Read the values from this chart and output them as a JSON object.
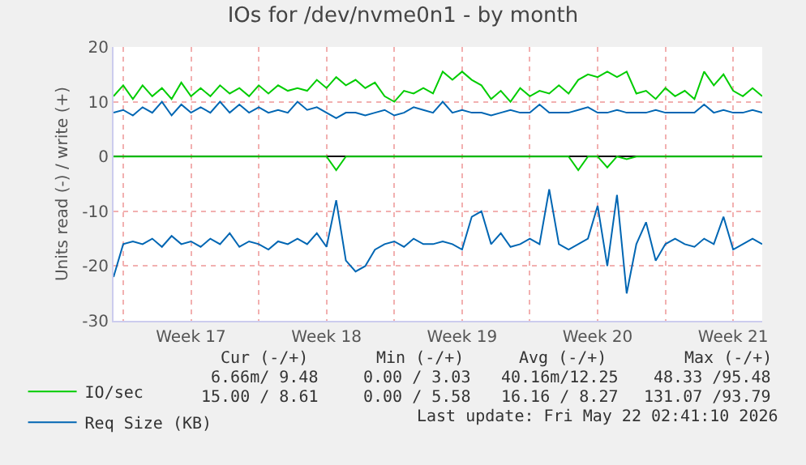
{
  "chart_data": {
    "type": "line",
    "title": "IOs for /dev/nvme0n1 - by month",
    "ylabel": "Units read (-) / write (+)",
    "x": [
      "2026-04-19T12:00",
      "2026-04-20T00:00",
      "2026-04-20T12:00",
      "2026-04-21T00:00",
      "2026-04-21T12:00",
      "2026-04-22T00:00",
      "2026-04-22T12:00",
      "2026-04-23T00:00",
      "2026-04-23T12:00",
      "2026-04-24T00:00",
      "2026-04-24T12:00",
      "2026-04-25T00:00",
      "2026-04-25T12:00",
      "2026-04-26T00:00",
      "2026-04-26T12:00",
      "2026-04-27T00:00",
      "2026-04-27T12:00",
      "2026-04-28T00:00",
      "2026-04-28T12:00",
      "2026-04-29T00:00",
      "2026-04-29T12:00",
      "2026-04-30T00:00",
      "2026-04-30T12:00",
      "2026-05-01T00:00",
      "2026-05-01T12:00",
      "2026-05-02T00:00",
      "2026-05-02T12:00",
      "2026-05-03T00:00",
      "2026-05-03T12:00",
      "2026-05-04T00:00",
      "2026-05-04T12:00",
      "2026-05-05T00:00",
      "2026-05-05T12:00",
      "2026-05-06T00:00",
      "2026-05-06T12:00",
      "2026-05-07T00:00",
      "2026-05-07T12:00",
      "2026-05-08T00:00",
      "2026-05-08T12:00",
      "2026-05-09T00:00",
      "2026-05-09T12:00",
      "2026-05-10T00:00",
      "2026-05-10T12:00",
      "2026-05-11T00:00",
      "2026-05-11T12:00",
      "2026-05-12T00:00",
      "2026-05-12T12:00",
      "2026-05-13T00:00",
      "2026-05-13T12:00",
      "2026-05-14T00:00",
      "2026-05-14T12:00",
      "2026-05-15T00:00",
      "2026-05-15T12:00",
      "2026-05-16T00:00",
      "2026-05-16T12:00",
      "2026-05-17T00:00",
      "2026-05-17T12:00",
      "2026-05-18T00:00",
      "2026-05-18T12:00",
      "2026-05-19T00:00",
      "2026-05-19T12:00",
      "2026-05-20T00:00",
      "2026-05-20T12:00",
      "2026-05-21T00:00",
      "2026-05-21T12:00",
      "2026-05-22T00:00",
      "2026-05-22T12:00",
      "2026-05-23T00:00"
    ],
    "series": [
      {
        "name": "IO/sec",
        "color": "#00cc00",
        "values": [
          11,
          13,
          10.5,
          13,
          11,
          12.5,
          10.5,
          13.5,
          11,
          12.5,
          11,
          13,
          11.5,
          12.5,
          11,
          13,
          11.5,
          13,
          12,
          12.5,
          12,
          14,
          12.5,
          14.5,
          13,
          14,
          12.5,
          13.5,
          11,
          10,
          12,
          11.5,
          12.5,
          11.5,
          15.5,
          14,
          15.5,
          14,
          13,
          10.5,
          12,
          10,
          12.5,
          11,
          12,
          11.5,
          13,
          11.5,
          14,
          15,
          14.5,
          15.5,
          14.5,
          15.5,
          11.5,
          12,
          10.5,
          12.5,
          11,
          12,
          10.5,
          15.5,
          13,
          15,
          12,
          11,
          12.5,
          11
        ]
      },
      {
        "color": "#00cc00",
        "values": [
          0,
          0,
          0,
          0,
          0,
          0,
          0,
          0,
          0,
          0,
          0,
          0,
          0,
          0,
          0,
          0,
          0,
          0,
          0,
          0,
          0,
          0,
          0,
          -2.5,
          0,
          0,
          0,
          0,
          0,
          0,
          0,
          0,
          0,
          0,
          0,
          0,
          0,
          0,
          0,
          0,
          0,
          0,
          0,
          0,
          0,
          0,
          0,
          0,
          -2.5,
          0,
          0,
          -2,
          0,
          -0.5,
          0,
          0,
          0,
          0,
          0,
          0,
          0,
          0,
          0,
          0,
          0,
          0,
          0,
          0
        ]
      },
      {
        "name": "Req Size (KB)",
        "color": "#0066b3",
        "values": [
          8,
          8.5,
          7.5,
          9,
          8,
          10,
          7.5,
          9.5,
          8,
          9,
          8,
          10,
          8,
          9.5,
          8,
          9,
          8,
          8.5,
          8,
          10,
          8.5,
          9,
          8,
          7,
          8,
          8,
          7.5,
          8,
          8.5,
          7.5,
          8,
          9,
          8.5,
          8,
          10,
          8,
          8.5,
          8,
          8,
          7.5,
          8,
          8.5,
          8,
          8,
          9.5,
          8,
          8,
          8,
          8.5,
          9,
          8,
          8,
          8.5,
          8,
          8,
          8,
          8.5,
          8,
          8,
          8,
          8,
          9.5,
          8,
          8.5,
          8,
          8,
          8.5,
          8
        ]
      },
      {
        "color": "#0066b3",
        "values": [
          -22,
          -16,
          -15.5,
          -16,
          -15,
          -16.5,
          -14.5,
          -16,
          -15.5,
          -16.5,
          -15,
          -16,
          -14,
          -16.5,
          -15.5,
          -16,
          -17,
          -15.5,
          -16,
          -15,
          -16,
          -14,
          -16.5,
          -8,
          -19,
          -21,
          -20,
          -17,
          -16,
          -15.5,
          -16.5,
          -15,
          -16,
          -16,
          -15.5,
          -16,
          -17,
          -11,
          -10,
          -16,
          -14,
          -16.5,
          -16,
          -15,
          -16,
          -6,
          -16,
          -17,
          -16,
          -15,
          -9,
          -20,
          -7,
          -25,
          -16,
          -12,
          -19,
          -16,
          -15,
          -16,
          -16.5,
          -15,
          -16,
          -11,
          -17,
          -16,
          -15,
          -16
        ]
      }
    ],
    "xlim": [
      "2026-04-19T12:00",
      "2026-05-23T00:00"
    ],
    "xticks": [
      {
        "value": "2026-04-20",
        "label": null
      },
      {
        "value": "2026-04-23T12:00",
        "label": "Week 17"
      },
      {
        "value": "2026-04-27",
        "label": null
      },
      {
        "value": "2026-04-30T12:00",
        "label": "Week 18"
      },
      {
        "value": "2026-05-04",
        "label": null
      },
      {
        "value": "2026-05-07T12:00",
        "label": "Week 19"
      },
      {
        "value": "2026-05-11",
        "label": null
      },
      {
        "value": "2026-05-14T12:00",
        "label": "Week 20"
      },
      {
        "value": "2026-05-18",
        "label": null
      },
      {
        "value": "2026-05-21T12:00",
        "label": "Week 21"
      }
    ],
    "ylim": [
      -30,
      20
    ],
    "yticks": [
      -30,
      -20,
      -10,
      0,
      10,
      20
    ],
    "grid": true,
    "legend": "bottom left",
    "marker": "none",
    "line_style": "solid",
    "annotations": [
      "Cur (-/+)",
      "Min (-/+)",
      "Avg (-/+)",
      "Max (-/+)",
      "6.66m/ 9.48",
      "0.00 / 3.03",
      "40.16m/12.25",
      "48.33 /95.48",
      "15.00 / 8.61",
      "0.00 / 5.58",
      "16.16 / 8.27",
      "131.07 /93.79",
      "Last update: Fri May 22 02:41:10 2026"
    ]
  }
}
